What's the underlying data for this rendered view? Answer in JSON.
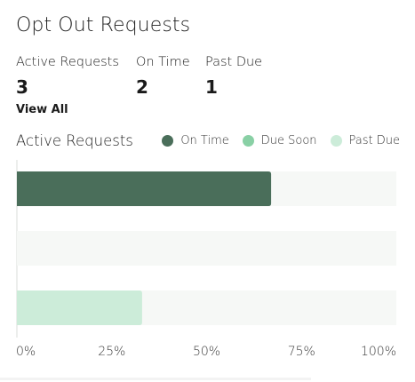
{
  "header": {
    "title": "Opt Out Requests"
  },
  "stats": [
    {
      "label": "Active Requests",
      "value": "3"
    },
    {
      "label": "On Time",
      "value": "2"
    },
    {
      "label": "Past Due",
      "value": "1"
    }
  ],
  "view_all_label": "View All",
  "chart_section": {
    "title": "Active Requests",
    "legend": [
      {
        "label": "On Time",
        "color": "#4a6e5a"
      },
      {
        "label": "Due Soon",
        "color": "#89d0a5"
      },
      {
        "label": "Past Due",
        "color": "#ccecd9"
      }
    ]
  },
  "chart_data": {
    "type": "bar",
    "orientation": "horizontal",
    "title": "Active Requests",
    "xlim": [
      0,
      100
    ],
    "x_ticks": [
      "0%",
      "25%",
      "50%",
      "75%",
      "100%"
    ],
    "series": [
      {
        "name": "On Time",
        "value": 67,
        "color": "#4a6e5a"
      },
      {
        "name": "Due Soon",
        "value": 0,
        "color": "#89d0a5"
      },
      {
        "name": "Past Due",
        "value": 33,
        "color": "#ccecd9"
      }
    ],
    "track_color": "#f6f8f6",
    "legend_position": "top-right"
  }
}
